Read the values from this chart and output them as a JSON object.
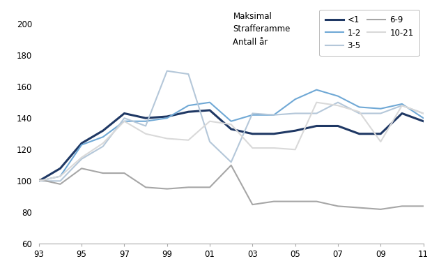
{
  "years": [
    93,
    94,
    95,
    96,
    97,
    98,
    99,
    100,
    101,
    102,
    103,
    104,
    105,
    106,
    107,
    108,
    109,
    110,
    111
  ],
  "x_labels": [
    "93",
    "95",
    "97",
    "99",
    "01",
    "03",
    "05",
    "07",
    "09",
    "11"
  ],
  "x_ticks": [
    93,
    95,
    97,
    99,
    101,
    103,
    105,
    107,
    109,
    111
  ],
  "ylim": [
    60,
    210
  ],
  "yticks": [
    60,
    80,
    100,
    120,
    140,
    160,
    180,
    200
  ],
  "series": {
    "lt1": {
      "label": "<1",
      "color": "#1f3864",
      "linewidth": 2.2,
      "values": [
        100,
        108,
        124,
        132,
        143,
        140,
        141,
        144,
        145,
        133,
        130,
        130,
        132,
        135,
        135,
        130,
        130,
        143,
        138
      ]
    },
    "s12": {
      "label": "1-2",
      "color": "#6fa8d5",
      "linewidth": 1.5,
      "values": [
        100,
        103,
        123,
        128,
        138,
        138,
        140,
        148,
        150,
        138,
        142,
        142,
        152,
        158,
        154,
        147,
        146,
        149,
        140
      ]
    },
    "s35": {
      "label": "3-5",
      "color": "#b4c7d9",
      "linewidth": 1.5,
      "values": [
        100,
        100,
        114,
        122,
        140,
        135,
        170,
        168,
        125,
        112,
        143,
        142,
        143,
        143,
        150,
        143,
        143,
        148,
        143
      ]
    },
    "s69": {
      "label": "6-9",
      "color": "#a6a6a6",
      "linewidth": 1.5,
      "values": [
        101,
        98,
        108,
        105,
        105,
        96,
        95,
        96,
        96,
        110,
        85,
        87,
        87,
        87,
        84,
        83,
        82,
        84,
        84
      ]
    },
    "s1021": {
      "label": "10-21",
      "color": "#d9d9d9",
      "linewidth": 1.5,
      "values": [
        100,
        103,
        115,
        124,
        138,
        130,
        127,
        126,
        138,
        136,
        121,
        121,
        120,
        150,
        148,
        144,
        125,
        148,
        143
      ]
    }
  },
  "background_color": "#ffffff",
  "axis_fontsize": 8.5
}
